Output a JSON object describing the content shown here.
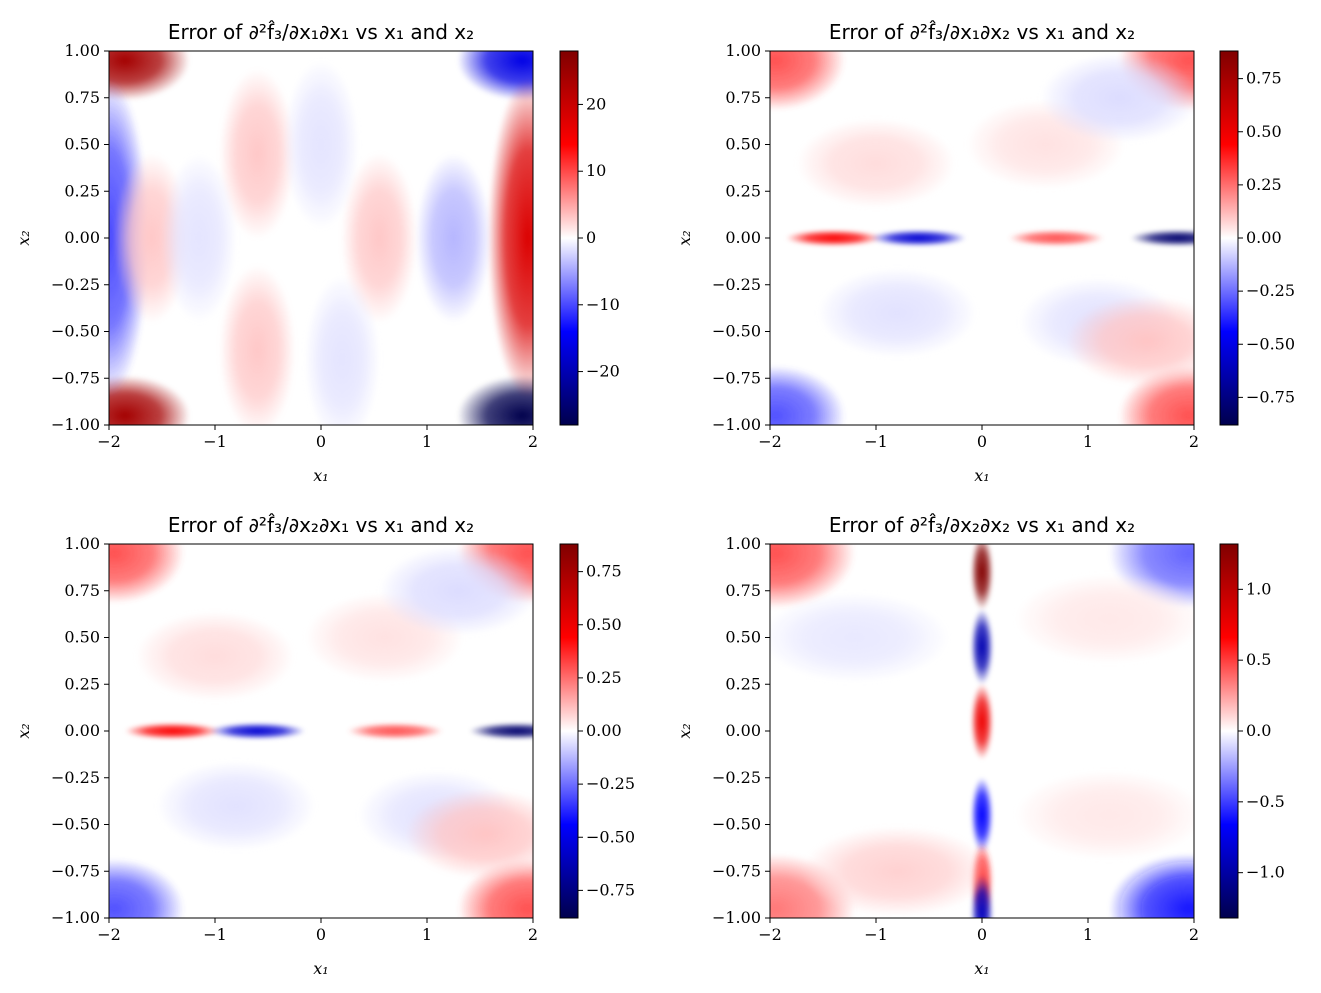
{
  "chart_data": [
    {
      "type": "heatmap",
      "title": "Error of ∂²f̂₃/∂x₁∂x₁ vs x₁ and x₂",
      "xlabel": "x₁",
      "ylabel": "x₂",
      "xlim": [
        -2,
        2
      ],
      "ylim": [
        -1,
        1
      ],
      "xticks": [
        -2,
        -1,
        0,
        1,
        2
      ],
      "yticks": [
        -1.0,
        -0.75,
        -0.5,
        -0.25,
        0.0,
        0.25,
        0.5,
        0.75,
        1.0
      ],
      "colormap": "seismic",
      "clim": [
        -28,
        28
      ],
      "colorbar_ticks": [
        -20,
        -10,
        0,
        10,
        20
      ],
      "features": [
        {
          "x": -1.85,
          "y": 0.95,
          "value": 24
        },
        {
          "x": -1.85,
          "y": -0.95,
          "value": 24
        },
        {
          "x": 1.9,
          "y": 0.95,
          "value": -16
        },
        {
          "x": 1.9,
          "y": -0.95,
          "value": -28
        },
        {
          "x": -2.0,
          "y": 0.0,
          "value": -10
        },
        {
          "x": 1.95,
          "y": 0.0,
          "value": 18
        },
        {
          "x": -1.6,
          "y": 0.0,
          "value": 3
        },
        {
          "x": -0.6,
          "y": 0.45,
          "value": 3
        },
        {
          "x": -0.6,
          "y": -0.6,
          "value": 3
        },
        {
          "x": 0.55,
          "y": 0.0,
          "value": 3
        },
        {
          "x": -1.15,
          "y": 0.0,
          "value": -1.5
        },
        {
          "x": 0.0,
          "y": 0.5,
          "value": -1.5
        },
        {
          "x": 0.2,
          "y": -0.65,
          "value": -1.5
        },
        {
          "x": 1.25,
          "y": 0.0,
          "value": -4
        }
      ]
    },
    {
      "type": "heatmap",
      "title": "Error of ∂²f̂₃/∂x₁∂x₂ vs x₁ and x₂",
      "xlabel": "x₁",
      "ylabel": "x₂",
      "xlim": [
        -2,
        2
      ],
      "ylim": [
        -1,
        1
      ],
      "xticks": [
        -2,
        -1,
        0,
        1,
        2
      ],
      "yticks": [
        -1.0,
        -0.75,
        -0.5,
        -0.25,
        0.0,
        0.25,
        0.5,
        0.75,
        1.0
      ],
      "colormap": "seismic",
      "clim": [
        -0.88,
        0.88
      ],
      "colorbar_ticks": [
        -0.75,
        -0.5,
        -0.25,
        0.0,
        0.25,
        0.5,
        0.75
      ],
      "features": [
        {
          "x": -1.95,
          "y": 0.95,
          "value": 0.3
        },
        {
          "x": 1.95,
          "y": 0.95,
          "value": 0.3
        },
        {
          "x": -1.95,
          "y": -0.95,
          "value": -0.3
        },
        {
          "x": 1.95,
          "y": -0.95,
          "value": 0.3
        },
        {
          "x": -1.4,
          "y": 0.0,
          "value": 0.45
        },
        {
          "x": -0.6,
          "y": 0.0,
          "value": -0.55
        },
        {
          "x": 0.7,
          "y": 0.0,
          "value": 0.3
        },
        {
          "x": 1.85,
          "y": 0.0,
          "value": -0.8
        },
        {
          "x": -1.0,
          "y": 0.4,
          "value": 0.06
        },
        {
          "x": -0.8,
          "y": -0.4,
          "value": -0.05
        },
        {
          "x": 0.6,
          "y": 0.5,
          "value": 0.05
        },
        {
          "x": 1.1,
          "y": -0.45,
          "value": -0.05
        },
        {
          "x": 1.3,
          "y": 0.75,
          "value": -0.06
        },
        {
          "x": 1.55,
          "y": -0.55,
          "value": 0.1
        }
      ]
    },
    {
      "type": "heatmap",
      "title": "Error of ∂²f̂₃/∂x₂∂x₁ vs x₁ and x₂",
      "xlabel": "x₁",
      "ylabel": "x₂",
      "xlim": [
        -2,
        2
      ],
      "ylim": [
        -1,
        1
      ],
      "xticks": [
        -2,
        -1,
        0,
        1,
        2
      ],
      "yticks": [
        -1.0,
        -0.75,
        -0.5,
        -0.25,
        0.0,
        0.25,
        0.5,
        0.75,
        1.0
      ],
      "colormap": "seismic",
      "clim": [
        -0.88,
        0.88
      ],
      "colorbar_ticks": [
        -0.75,
        -0.5,
        -0.25,
        0.0,
        0.25,
        0.5,
        0.75
      ],
      "features": [
        {
          "x": -1.95,
          "y": 0.95,
          "value": 0.3
        },
        {
          "x": 1.95,
          "y": 0.95,
          "value": 0.3
        },
        {
          "x": -1.95,
          "y": -0.95,
          "value": -0.3
        },
        {
          "x": 1.95,
          "y": -0.95,
          "value": 0.3
        },
        {
          "x": -1.4,
          "y": 0.0,
          "value": 0.45
        },
        {
          "x": -0.6,
          "y": 0.0,
          "value": -0.55
        },
        {
          "x": 0.7,
          "y": 0.0,
          "value": 0.3
        },
        {
          "x": 1.85,
          "y": 0.0,
          "value": -0.8
        },
        {
          "x": -1.0,
          "y": 0.4,
          "value": 0.06
        },
        {
          "x": -0.8,
          "y": -0.4,
          "value": -0.05
        },
        {
          "x": 0.6,
          "y": 0.5,
          "value": 0.05
        },
        {
          "x": 1.1,
          "y": -0.45,
          "value": -0.05
        },
        {
          "x": 1.3,
          "y": 0.75,
          "value": -0.06
        },
        {
          "x": 1.55,
          "y": -0.55,
          "value": 0.1
        }
      ]
    },
    {
      "type": "heatmap",
      "title": "Error of ∂²f̂₃/∂x₂∂x₂ vs x₁ and x₂",
      "xlabel": "x₁",
      "ylabel": "x₂",
      "xlim": [
        -2,
        2
      ],
      "ylim": [
        -1,
        1
      ],
      "xticks": [
        -2,
        -1,
        0,
        1,
        2
      ],
      "yticks": [
        -1.0,
        -0.75,
        -0.5,
        -0.25,
        0.0,
        0.25,
        0.5,
        0.75,
        1.0
      ],
      "colormap": "seismic",
      "clim": [
        -1.32,
        1.32
      ],
      "colorbar_ticks": [
        -1.0,
        -0.5,
        0.0,
        0.5,
        1.0
      ],
      "features": [
        {
          "x": 0.0,
          "y": 0.85,
          "value": 1.3
        },
        {
          "x": 0.0,
          "y": 0.45,
          "value": -0.95
        },
        {
          "x": 0.0,
          "y": 0.05,
          "value": 0.75
        },
        {
          "x": 0.0,
          "y": -0.45,
          "value": -0.65
        },
        {
          "x": 0.0,
          "y": -0.8,
          "value": 0.55
        },
        {
          "x": 0.0,
          "y": -0.97,
          "value": -0.9
        },
        {
          "x": -1.95,
          "y": 0.95,
          "value": 0.45
        },
        {
          "x": 1.95,
          "y": 0.95,
          "value": -0.4
        },
        {
          "x": -1.95,
          "y": -0.95,
          "value": 0.35
        },
        {
          "x": 1.95,
          "y": -0.95,
          "value": -0.6
        },
        {
          "x": -0.8,
          "y": -0.75,
          "value": 0.12
        },
        {
          "x": 1.2,
          "y": 0.6,
          "value": 0.06
        },
        {
          "x": -1.2,
          "y": 0.5,
          "value": -0.06
        },
        {
          "x": 1.2,
          "y": -0.45,
          "value": 0.06
        }
      ]
    }
  ]
}
